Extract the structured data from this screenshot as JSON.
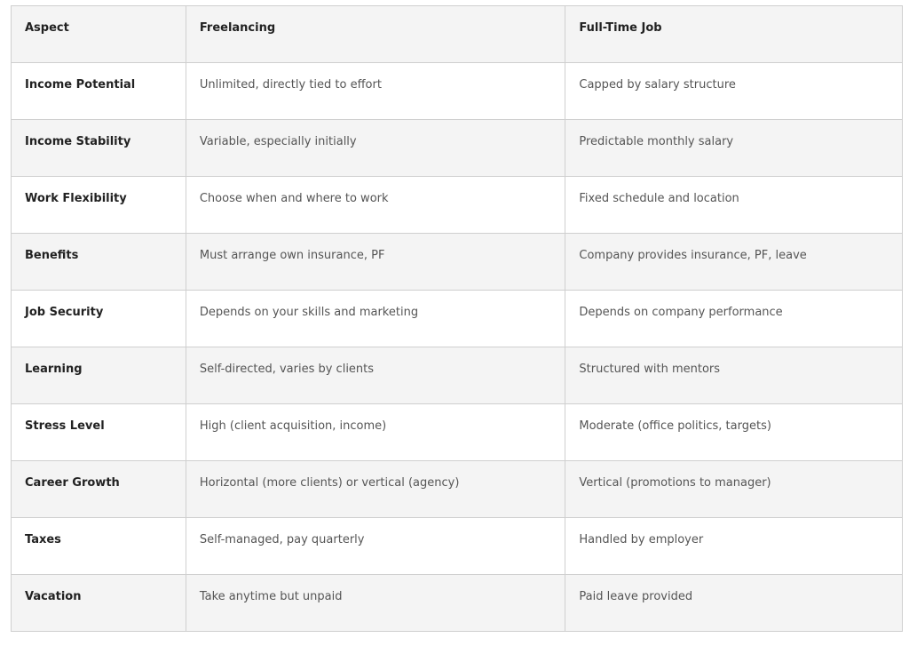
{
  "table": {
    "headers": [
      "Aspect",
      "Freelancing",
      "Full-Time Job"
    ],
    "rows": [
      [
        "Income Potential",
        "Unlimited, directly tied to effort",
        "Capped by salary structure"
      ],
      [
        "Income Stability",
        "Variable, especially initially",
        "Predictable monthly salary"
      ],
      [
        "Work Flexibility",
        "Choose when and where to work",
        "Fixed schedule and location"
      ],
      [
        "Benefits",
        "Must arrange own insurance, PF",
        "Company provides insurance, PF, leave"
      ],
      [
        "Job Security",
        "Depends on your skills and marketing",
        "Depends on company performance"
      ],
      [
        "Learning",
        "Self-directed, varies by clients",
        "Structured with mentors"
      ],
      [
        "Stress Level",
        "High (client acquisition, income)",
        "Moderate (office politics, targets)"
      ],
      [
        "Career Growth",
        "Horizontal (more clients) or vertical (agency)",
        "Vertical (promotions to manager)"
      ],
      [
        "Taxes",
        "Self-managed, pay quarterly",
        "Handled by employer"
      ],
      [
        "Vacation",
        "Take anytime but unpaid",
        "Paid leave provided"
      ]
    ]
  }
}
